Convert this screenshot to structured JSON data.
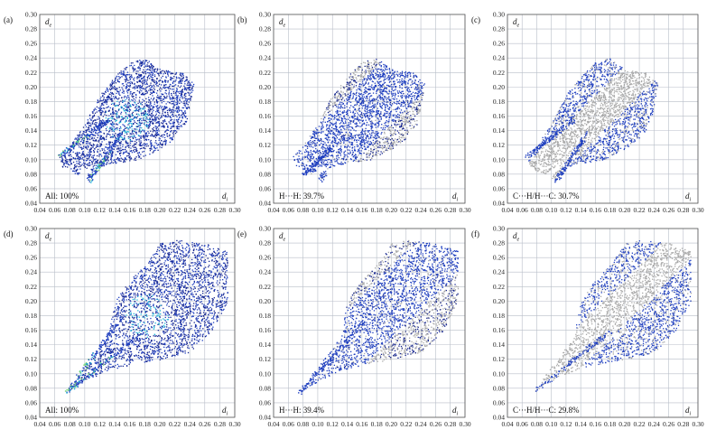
{
  "chart_data": [
    {
      "type": "scatter",
      "label": "(a)",
      "caption": "All: 100%",
      "xlabel": "d",
      "xlabel_sub": "i",
      "ylabel": "d",
      "ylabel_sub": "e",
      "xlim": [
        0.04,
        0.3
      ],
      "ylim": [
        0.04,
        0.3
      ],
      "xticks": [
        "0.04",
        "0.06",
        "0.08",
        "0.10",
        "0.12",
        "0.14",
        "0.16",
        "0.18",
        "0.20",
        "0.22",
        "0.24",
        "0.26",
        "0.28",
        "0.30"
      ],
      "yticks": [
        "0.04",
        "0.06",
        "0.08",
        "0.10",
        "0.12",
        "0.14",
        "0.16",
        "0.18",
        "0.20",
        "0.22",
        "0.24",
        "0.26",
        "0.28",
        "0.30"
      ],
      "grid": true,
      "highlight": "all",
      "outline": [
        [
          0.065,
          0.105
        ],
        [
          0.08,
          0.12
        ],
        [
          0.1,
          0.15
        ],
        [
          0.12,
          0.19
        ],
        [
          0.14,
          0.215
        ],
        [
          0.16,
          0.235
        ],
        [
          0.18,
          0.24
        ],
        [
          0.2,
          0.225
        ],
        [
          0.23,
          0.22
        ],
        [
          0.245,
          0.205
        ],
        [
          0.235,
          0.15
        ],
        [
          0.22,
          0.13
        ],
        [
          0.2,
          0.115
        ],
        [
          0.17,
          0.1
        ],
        [
          0.135,
          0.095
        ],
        [
          0.12,
          0.09
        ],
        [
          0.105,
          0.07
        ],
        [
          0.1,
          0.075
        ],
        [
          0.11,
          0.095
        ],
        [
          0.09,
          0.08
        ],
        [
          0.07,
          0.09
        ]
      ],
      "fingers": [
        [
          [
            0.065,
            0.105
          ],
          [
            0.13,
            0.155
          ]
        ],
        [
          [
            0.105,
            0.07
          ],
          [
            0.15,
            0.14
          ]
        ]
      ]
    },
    {
      "type": "scatter",
      "label": "(b)",
      "caption": "H···H: 39.7%",
      "xlabel": "d",
      "xlabel_sub": "i",
      "ylabel": "d",
      "ylabel_sub": "e",
      "xlim": [
        0.04,
        0.3
      ],
      "ylim": [
        0.04,
        0.3
      ],
      "xticks": [
        "0.04",
        "0.06",
        "0.08",
        "0.10",
        "0.12",
        "0.14",
        "0.16",
        "0.18",
        "0.20",
        "0.22",
        "0.24",
        "0.26",
        "0.28",
        "0.30"
      ],
      "yticks": [
        "0.04",
        "0.06",
        "0.08",
        "0.10",
        "0.12",
        "0.14",
        "0.16",
        "0.18",
        "0.20",
        "0.22",
        "0.24",
        "0.26",
        "0.28",
        "0.30"
      ],
      "grid": true,
      "highlight": "hh",
      "outline": [
        [
          0.065,
          0.105
        ],
        [
          0.08,
          0.12
        ],
        [
          0.1,
          0.15
        ],
        [
          0.12,
          0.19
        ],
        [
          0.14,
          0.215
        ],
        [
          0.16,
          0.235
        ],
        [
          0.18,
          0.24
        ],
        [
          0.2,
          0.225
        ],
        [
          0.23,
          0.22
        ],
        [
          0.245,
          0.205
        ],
        [
          0.235,
          0.15
        ],
        [
          0.22,
          0.13
        ],
        [
          0.2,
          0.115
        ],
        [
          0.17,
          0.1
        ],
        [
          0.135,
          0.095
        ],
        [
          0.12,
          0.09
        ],
        [
          0.105,
          0.07
        ],
        [
          0.1,
          0.075
        ],
        [
          0.11,
          0.095
        ],
        [
          0.09,
          0.08
        ],
        [
          0.07,
          0.09
        ]
      ],
      "fingers": [
        [
          [
            0.08,
            0.08
          ],
          [
            0.12,
            0.12
          ]
        ]
      ]
    },
    {
      "type": "scatter",
      "label": "(c)",
      "caption": "C···H/H···C: 30.7%",
      "xlabel": "d",
      "xlabel_sub": "i",
      "ylabel": "d",
      "ylabel_sub": "e",
      "xlim": [
        0.04,
        0.3
      ],
      "ylim": [
        0.04,
        0.3
      ],
      "xticks": [
        "0.04",
        "0.06",
        "0.08",
        "0.10",
        "0.12",
        "0.14",
        "0.16",
        "0.18",
        "0.20",
        "0.22",
        "0.24",
        "0.26",
        "0.28",
        "0.30"
      ],
      "yticks": [
        "0.04",
        "0.06",
        "0.08",
        "0.10",
        "0.12",
        "0.14",
        "0.16",
        "0.18",
        "0.20",
        "0.22",
        "0.24",
        "0.26",
        "0.28",
        "0.30"
      ],
      "grid": true,
      "highlight": "ch",
      "outline": [
        [
          0.065,
          0.105
        ],
        [
          0.08,
          0.12
        ],
        [
          0.1,
          0.15
        ],
        [
          0.12,
          0.19
        ],
        [
          0.14,
          0.215
        ],
        [
          0.16,
          0.235
        ],
        [
          0.18,
          0.24
        ],
        [
          0.2,
          0.225
        ],
        [
          0.23,
          0.22
        ],
        [
          0.245,
          0.205
        ],
        [
          0.235,
          0.15
        ],
        [
          0.22,
          0.13
        ],
        [
          0.2,
          0.115
        ],
        [
          0.17,
          0.1
        ],
        [
          0.135,
          0.095
        ],
        [
          0.12,
          0.09
        ],
        [
          0.105,
          0.07
        ],
        [
          0.1,
          0.075
        ],
        [
          0.11,
          0.095
        ],
        [
          0.09,
          0.08
        ],
        [
          0.07,
          0.09
        ]
      ],
      "fingers": [
        [
          [
            0.065,
            0.105
          ],
          [
            0.13,
            0.155
          ]
        ],
        [
          [
            0.105,
            0.07
          ],
          [
            0.15,
            0.14
          ]
        ]
      ]
    },
    {
      "type": "scatter",
      "label": "(d)",
      "caption": "All: 100%",
      "xlabel": "d",
      "xlabel_sub": "i",
      "ylabel": "d",
      "ylabel_sub": "e",
      "xlim": [
        0.04,
        0.3
      ],
      "ylim": [
        0.04,
        0.3
      ],
      "xticks": [
        "0.04",
        "0.06",
        "0.08",
        "0.10",
        "0.12",
        "0.14",
        "0.16",
        "0.18",
        "0.20",
        "0.22",
        "0.24",
        "0.26",
        "0.28",
        "0.30"
      ],
      "yticks": [
        "0.04",
        "0.06",
        "0.08",
        "0.10",
        "0.12",
        "0.14",
        "0.16",
        "0.18",
        "0.20",
        "0.22",
        "0.24",
        "0.26",
        "0.28",
        "0.30"
      ],
      "grid": true,
      "highlight": "all",
      "outline": [
        [
          0.075,
          0.075
        ],
        [
          0.1,
          0.11
        ],
        [
          0.13,
          0.15
        ],
        [
          0.14,
          0.2
        ],
        [
          0.16,
          0.23
        ],
        [
          0.18,
          0.25
        ],
        [
          0.2,
          0.28
        ],
        [
          0.22,
          0.285
        ],
        [
          0.26,
          0.28
        ],
        [
          0.29,
          0.27
        ],
        [
          0.29,
          0.2
        ],
        [
          0.27,
          0.16
        ],
        [
          0.24,
          0.13
        ],
        [
          0.2,
          0.12
        ],
        [
          0.17,
          0.115
        ],
        [
          0.13,
          0.105
        ],
        [
          0.1,
          0.09
        ]
      ],
      "fingers": [
        [
          [
            0.075,
            0.075
          ],
          [
            0.18,
            0.16
          ]
        ],
        [
          [
            0.075,
            0.075
          ],
          [
            0.15,
            0.18
          ]
        ]
      ]
    },
    {
      "type": "scatter",
      "label": "(e)",
      "caption": "H···H: 39.4%",
      "xlabel": "d",
      "xlabel_sub": "i",
      "ylabel": "d",
      "ylabel_sub": "e",
      "xlim": [
        0.04,
        0.3
      ],
      "ylim": [
        0.04,
        0.3
      ],
      "xticks": [
        "0.04",
        "0.06",
        "0.08",
        "0.10",
        "0.12",
        "0.14",
        "0.16",
        "0.18",
        "0.20",
        "0.22",
        "0.24",
        "0.26",
        "0.28",
        "0.30"
      ],
      "yticks": [
        "0.04",
        "0.06",
        "0.08",
        "0.10",
        "0.12",
        "0.14",
        "0.16",
        "0.18",
        "0.20",
        "0.22",
        "0.24",
        "0.26",
        "0.28",
        "0.30"
      ],
      "grid": true,
      "highlight": "hh",
      "outline": [
        [
          0.075,
          0.075
        ],
        [
          0.1,
          0.11
        ],
        [
          0.13,
          0.15
        ],
        [
          0.14,
          0.2
        ],
        [
          0.16,
          0.23
        ],
        [
          0.18,
          0.25
        ],
        [
          0.2,
          0.28
        ],
        [
          0.22,
          0.285
        ],
        [
          0.26,
          0.28
        ],
        [
          0.29,
          0.27
        ],
        [
          0.29,
          0.2
        ],
        [
          0.27,
          0.16
        ],
        [
          0.24,
          0.13
        ],
        [
          0.2,
          0.12
        ],
        [
          0.17,
          0.115
        ],
        [
          0.13,
          0.105
        ],
        [
          0.1,
          0.09
        ]
      ],
      "fingers": [
        [
          [
            0.075,
            0.075
          ],
          [
            0.16,
            0.17
          ]
        ]
      ]
    },
    {
      "type": "scatter",
      "label": "(f)",
      "caption": "C···H/H···C: 29.8%",
      "xlabel": "d",
      "xlabel_sub": "i",
      "ylabel": "d",
      "ylabel_sub": "e",
      "xlim": [
        0.04,
        0.3
      ],
      "ylim": [
        0.04,
        0.3
      ],
      "xticks": [
        "0.04",
        "0.06",
        "0.08",
        "0.10",
        "0.12",
        "0.14",
        "0.16",
        "0.18",
        "0.20",
        "0.22",
        "0.24",
        "0.26",
        "0.28",
        "0.30"
      ],
      "yticks": [
        "0.04",
        "0.06",
        "0.08",
        "0.10",
        "0.12",
        "0.14",
        "0.16",
        "0.18",
        "0.20",
        "0.22",
        "0.24",
        "0.26",
        "0.28",
        "0.30"
      ],
      "grid": true,
      "highlight": "ch",
      "outline": [
        [
          0.075,
          0.075
        ],
        [
          0.1,
          0.11
        ],
        [
          0.13,
          0.15
        ],
        [
          0.14,
          0.2
        ],
        [
          0.16,
          0.23
        ],
        [
          0.18,
          0.25
        ],
        [
          0.2,
          0.28
        ],
        [
          0.22,
          0.285
        ],
        [
          0.26,
          0.28
        ],
        [
          0.29,
          0.27
        ],
        [
          0.29,
          0.2
        ],
        [
          0.27,
          0.16
        ],
        [
          0.24,
          0.13
        ],
        [
          0.2,
          0.12
        ],
        [
          0.17,
          0.115
        ],
        [
          0.13,
          0.105
        ],
        [
          0.1,
          0.09
        ]
      ],
      "fingers": [
        [
          [
            0.075,
            0.075
          ],
          [
            0.18,
            0.16
          ]
        ]
      ]
    }
  ],
  "colors": {
    "grid": "#b8bec8",
    "frame": "#555555",
    "blue": "#1f3fbf",
    "deep_blue": "#14248f",
    "cyan": "#23b6d8",
    "green": "#6fd36f",
    "grey": "#a8a8a8"
  }
}
